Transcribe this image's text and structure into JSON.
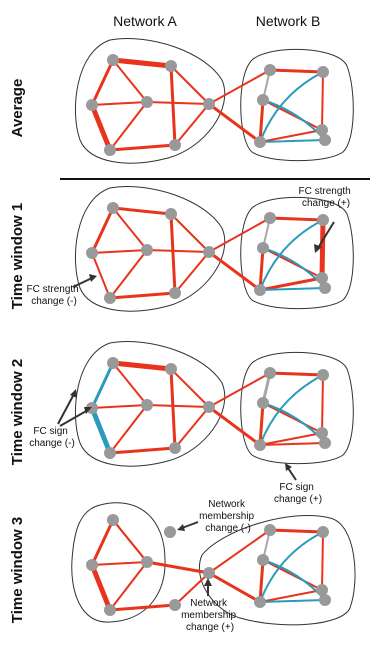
{
  "columns": {
    "a": "Network A",
    "b": "Network B"
  },
  "rows": [
    {
      "key": "average",
      "label": "Average"
    },
    {
      "key": "tw1",
      "label": "Time window 1"
    },
    {
      "key": "tw2",
      "label": "Time window 2"
    },
    {
      "key": "tw3",
      "label": "Time window 3"
    }
  ],
  "annotations": {
    "tw1_strength_pos": [
      "FC strength",
      "change (+)"
    ],
    "tw1_strength_neg": [
      "FC strength",
      "change (-)"
    ],
    "tw2_sign_neg": [
      "FC sign",
      "change (-)"
    ],
    "tw2_sign_pos": [
      "FC sign",
      "change (+)"
    ],
    "tw3_membership_neg": [
      "Network",
      "membership",
      "change (-)"
    ],
    "tw3_membership_pos": [
      "Network",
      "membership",
      "change (+)"
    ]
  },
  "colors": {
    "positive_edge": "#e8341c",
    "negative_edge": "#2a9bbd",
    "weak_edge": "#a8a8a8",
    "node": "#999999",
    "outline": "#333333"
  }
}
